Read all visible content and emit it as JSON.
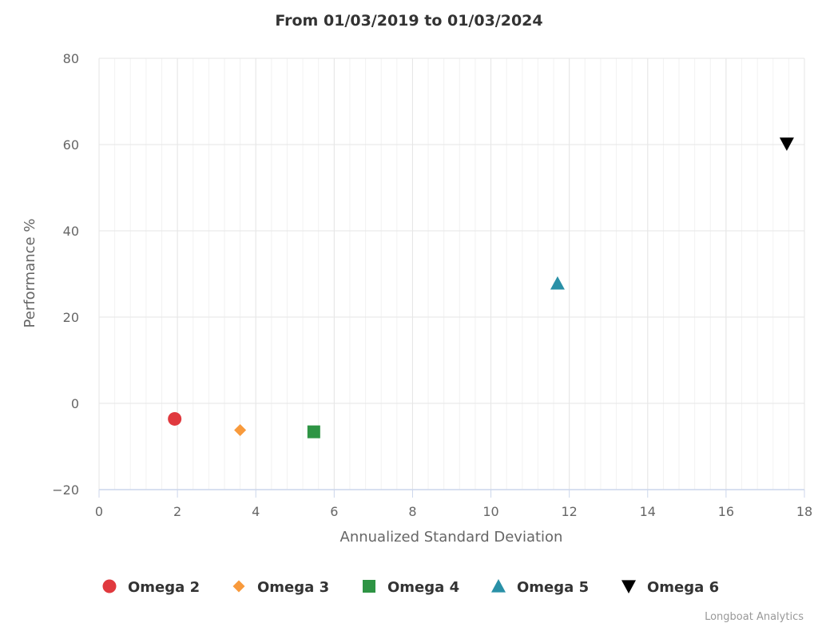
{
  "chart_data": {
    "type": "scatter",
    "title": "From 01/03/2019 to 01/03/2024",
    "xlabel": "Annualized Standard Deviation",
    "ylabel": "Performance %",
    "xlim": [
      0,
      18
    ],
    "ylim": [
      -20,
      80
    ],
    "x_ticks": [
      0,
      2,
      4,
      6,
      8,
      10,
      12,
      14,
      16,
      18
    ],
    "y_ticks": [
      -20,
      0,
      20,
      40,
      60,
      80
    ],
    "x_tick_labels": [
      "0",
      "2",
      "4",
      "6",
      "8",
      "10",
      "12",
      "14",
      "16",
      "18"
    ],
    "y_tick_labels": [
      "−20",
      "0",
      "20",
      "40",
      "60",
      "80"
    ],
    "grid": true,
    "legend_position": "bottom",
    "series": [
      {
        "name": "Omega 2",
        "marker": "circle",
        "color": "#e0393e",
        "x": 1.93,
        "y": -3.6
      },
      {
        "name": "Omega 3",
        "marker": "diamond",
        "color": "#f89a3c",
        "x": 3.6,
        "y": -6.2
      },
      {
        "name": "Omega 4",
        "marker": "square",
        "color": "#2e9444",
        "x": 5.48,
        "y": -6.6
      },
      {
        "name": "Omega 5",
        "marker": "triangle",
        "color": "#2990a7",
        "x": 11.7,
        "y": 27.8
      },
      {
        "name": "Omega 6",
        "marker": "triangle-down",
        "color": "#000000",
        "x": 17.55,
        "y": 60.2
      }
    ],
    "credit": "Longboat Analytics"
  }
}
